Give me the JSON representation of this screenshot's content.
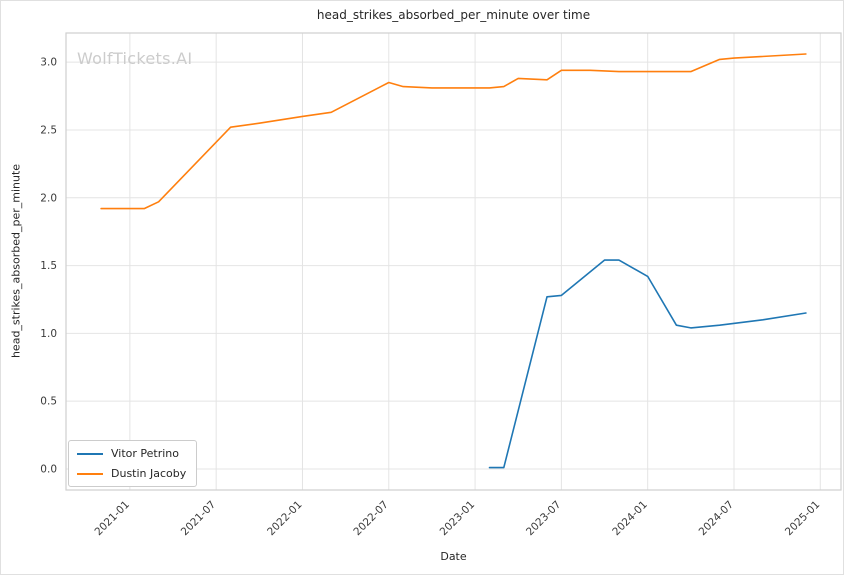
{
  "watermark": "WolfTickets.AI",
  "chart_data": {
    "type": "line",
    "title": "head_strikes_absorbed_per_minute over time",
    "xlabel": "Date",
    "ylabel": "head_strikes_absorbed_per_minute",
    "x_ticks": [
      "2021-01",
      "2021-07",
      "2022-01",
      "2022-07",
      "2023-01",
      "2023-07",
      "2024-01",
      "2024-07",
      "2025-01"
    ],
    "y_ticks": [
      "0.0",
      "0.5",
      "1.0",
      "1.5",
      "2.0",
      "2.5",
      "3.0"
    ],
    "xlim": [
      2020.63,
      2025.12
    ],
    "ylim": [
      -0.155,
      3.215
    ],
    "grid": true,
    "legend_position": "lower left",
    "series": [
      {
        "name": "Vitor Petrino",
        "color": "#1f77b4",
        "x": [
          "2023-02",
          "2023-03",
          "2023-06",
          "2023-07",
          "2023-10",
          "2023-11",
          "2024-01",
          "2024-03",
          "2024-04",
          "2024-06",
          "2024-09",
          "2024-12"
        ],
        "y": [
          0.01,
          0.01,
          1.27,
          1.28,
          1.54,
          1.54,
          1.42,
          1.06,
          1.04,
          1.06,
          1.1,
          1.15
        ]
      },
      {
        "name": "Dustin Jacoby",
        "color": "#ff7f0e",
        "x": [
          "2020-11",
          "2021-02",
          "2021-03",
          "2021-08",
          "2021-10",
          "2022-01",
          "2022-03",
          "2022-07",
          "2022-08",
          "2022-10",
          "2023-02",
          "2023-03",
          "2023-04",
          "2023-06",
          "2023-07",
          "2023-09",
          "2023-11",
          "2024-04",
          "2024-06",
          "2024-07",
          "2024-12"
        ],
        "y": [
          1.92,
          1.92,
          1.97,
          2.52,
          2.55,
          2.6,
          2.63,
          2.85,
          2.82,
          2.81,
          2.81,
          2.82,
          2.88,
          2.87,
          2.94,
          2.94,
          2.93,
          2.93,
          3.02,
          3.03,
          3.06
        ]
      }
    ]
  }
}
